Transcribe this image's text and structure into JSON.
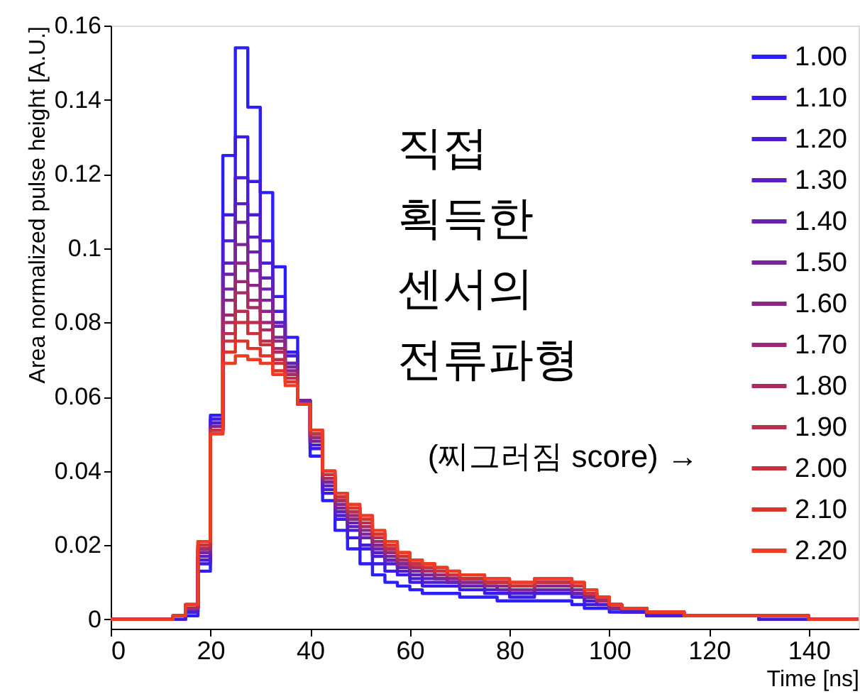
{
  "chart_data": {
    "type": "histogram",
    "xlabel": "Time [ns]",
    "ylabel": "Area normalized pulse height [A.U.]",
    "bins": [
      0,
      2.5,
      5,
      7.5,
      10,
      12.5,
      15,
      17.5,
      20,
      22.5,
      25,
      27.5,
      30,
      32.5,
      35,
      37.5,
      40,
      42.5,
      45,
      47.5,
      50,
      52.5,
      55,
      57.5,
      60,
      62.5,
      65,
      67.5,
      70,
      72.5,
      75,
      77.5,
      80,
      82.5,
      85,
      87.5,
      90,
      92.5,
      95,
      97.5,
      100,
      102.5,
      105,
      107.5,
      110,
      112.5,
      115,
      117.5,
      120,
      122.5,
      125,
      127.5,
      130,
      132.5,
      135,
      137.5,
      140,
      142.5,
      145,
      147.5,
      150
    ],
    "xlim": [
      0,
      150
    ],
    "xticks": [
      0,
      20,
      40,
      60,
      80,
      100,
      120,
      140
    ],
    "ylim": [
      -0.0025,
      0.16
    ],
    "yticks": [
      0,
      0.02,
      0.04,
      0.06,
      0.08,
      0.1,
      0.12,
      0.14,
      0.16
    ],
    "legend": "top right",
    "annotations": [
      "직접\n획득한\n센서의\n전류파형",
      "(찌그러짐 score) →"
    ],
    "series": [
      {
        "name": "1.00",
        "color": "#2b1eff",
        "values": [
          0,
          0,
          0,
          0,
          0,
          0,
          0.001,
          0.013,
          0.055,
          0.125,
          0.154,
          0.138,
          0.115,
          0.095,
          0.076,
          0.059,
          0.044,
          0.032,
          0.024,
          0.019,
          0.015,
          0.012,
          0.01,
          0.009,
          0.008,
          0.007,
          0.007,
          0.007,
          0.006,
          0.006,
          0.006,
          0.005,
          0.005,
          0.005,
          0.005,
          0.005,
          0.005,
          0.004,
          0.003,
          0.003,
          0.002,
          0.002,
          0.002,
          0.001,
          0.001,
          0.001,
          0.001,
          0.001,
          0.001,
          0.001,
          0.001,
          0.001,
          0,
          0,
          0,
          0,
          0,
          0,
          0,
          0
        ]
      },
      {
        "name": "1.10",
        "color": "#3a1be8",
        "values": [
          0,
          0,
          0,
          0,
          0,
          0,
          0.002,
          0.015,
          0.054,
          0.109,
          0.13,
          0.118,
          0.102,
          0.087,
          0.072,
          0.059,
          0.046,
          0.034,
          0.027,
          0.022,
          0.019,
          0.015,
          0.013,
          0.012,
          0.01,
          0.009,
          0.009,
          0.009,
          0.008,
          0.008,
          0.007,
          0.007,
          0.006,
          0.006,
          0.007,
          0.007,
          0.007,
          0.006,
          0.004,
          0.004,
          0.003,
          0.002,
          0.002,
          0.001,
          0.001,
          0.001,
          0.001,
          0.001,
          0.001,
          0.001,
          0.001,
          0.001,
          0,
          0,
          0,
          0,
          0,
          0,
          0,
          0
        ]
      },
      {
        "name": "1.20",
        "color": "#4a1cd4",
        "values": [
          0,
          0,
          0,
          0,
          0,
          0,
          0.002,
          0.016,
          0.053,
          0.102,
          0.119,
          0.109,
          0.096,
          0.083,
          0.071,
          0.059,
          0.047,
          0.035,
          0.028,
          0.024,
          0.02,
          0.017,
          0.015,
          0.013,
          0.011,
          0.01,
          0.01,
          0.01,
          0.009,
          0.009,
          0.008,
          0.008,
          0.007,
          0.007,
          0.008,
          0.008,
          0.008,
          0.007,
          0.005,
          0.004,
          0.003,
          0.002,
          0.002,
          0.001,
          0.001,
          0.001,
          0.001,
          0.001,
          0.001,
          0.001,
          0.001,
          0.001,
          0,
          0,
          0,
          0,
          0,
          0,
          0,
          0
        ]
      },
      {
        "name": "1.30",
        "color": "#5a1fc0",
        "values": [
          0,
          0,
          0,
          0,
          0,
          0.001,
          0.003,
          0.017,
          0.052,
          0.096,
          0.112,
          0.103,
          0.092,
          0.08,
          0.069,
          0.059,
          0.048,
          0.036,
          0.029,
          0.025,
          0.022,
          0.018,
          0.016,
          0.014,
          0.012,
          0.011,
          0.011,
          0.01,
          0.009,
          0.009,
          0.009,
          0.008,
          0.008,
          0.008,
          0.008,
          0.008,
          0.008,
          0.007,
          0.006,
          0.005,
          0.003,
          0.003,
          0.003,
          0.002,
          0.002,
          0.002,
          0.001,
          0.001,
          0.001,
          0.001,
          0.001,
          0.001,
          0.001,
          0.001,
          0.001,
          0.001,
          0,
          0,
          0,
          0
        ]
      },
      {
        "name": "1.40",
        "color": "#6a21ad",
        "values": [
          0,
          0,
          0,
          0,
          0,
          0.001,
          0.003,
          0.018,
          0.052,
          0.093,
          0.107,
          0.099,
          0.089,
          0.079,
          0.069,
          0.059,
          0.048,
          0.037,
          0.03,
          0.026,
          0.022,
          0.019,
          0.016,
          0.014,
          0.013,
          0.012,
          0.011,
          0.01,
          0.009,
          0.009,
          0.009,
          0.008,
          0.008,
          0.008,
          0.008,
          0.008,
          0.008,
          0.007,
          0.006,
          0.005,
          0.003,
          0.003,
          0.003,
          0.002,
          0.002,
          0.002,
          0.001,
          0.001,
          0.001,
          0.001,
          0.001,
          0.001,
          0.001,
          0.001,
          0.001,
          0.001,
          0,
          0,
          0,
          0
        ]
      },
      {
        "name": "1.50",
        "color": "#7a249a",
        "values": [
          0,
          0,
          0,
          0,
          0,
          0.001,
          0.003,
          0.018,
          0.052,
          0.089,
          0.101,
          0.094,
          0.086,
          0.076,
          0.068,
          0.059,
          0.048,
          0.037,
          0.03,
          0.027,
          0.023,
          0.02,
          0.017,
          0.015,
          0.013,
          0.012,
          0.011,
          0.011,
          0.01,
          0.01,
          0.009,
          0.009,
          0.008,
          0.008,
          0.009,
          0.009,
          0.009,
          0.008,
          0.006,
          0.005,
          0.003,
          0.003,
          0.003,
          0.002,
          0.002,
          0.002,
          0.001,
          0.001,
          0.001,
          0.001,
          0.001,
          0.001,
          0.001,
          0.001,
          0.001,
          0.001,
          0,
          0,
          0,
          0
        ]
      },
      {
        "name": "1.60",
        "color": "#8a2687",
        "values": [
          0,
          0,
          0,
          0,
          0,
          0.001,
          0.003,
          0.019,
          0.051,
          0.086,
          0.096,
          0.09,
          0.083,
          0.075,
          0.067,
          0.058,
          0.049,
          0.038,
          0.031,
          0.027,
          0.024,
          0.02,
          0.018,
          0.015,
          0.014,
          0.013,
          0.012,
          0.011,
          0.01,
          0.01,
          0.009,
          0.009,
          0.008,
          0.008,
          0.009,
          0.009,
          0.009,
          0.008,
          0.006,
          0.005,
          0.003,
          0.003,
          0.003,
          0.002,
          0.002,
          0.002,
          0.001,
          0.001,
          0.001,
          0.001,
          0.001,
          0.001,
          0.001,
          0.001,
          0.001,
          0.001,
          0,
          0,
          0,
          0
        ]
      },
      {
        "name": "1.70",
        "color": "#9a2974",
        "values": [
          0,
          0,
          0,
          0,
          0,
          0.001,
          0.003,
          0.019,
          0.051,
          0.082,
          0.091,
          0.086,
          0.08,
          0.073,
          0.066,
          0.058,
          0.049,
          0.038,
          0.032,
          0.028,
          0.025,
          0.021,
          0.018,
          0.016,
          0.014,
          0.013,
          0.012,
          0.012,
          0.011,
          0.011,
          0.01,
          0.01,
          0.009,
          0.009,
          0.01,
          0.01,
          0.01,
          0.009,
          0.007,
          0.005,
          0.004,
          0.003,
          0.003,
          0.002,
          0.002,
          0.002,
          0.001,
          0.001,
          0.001,
          0.001,
          0.001,
          0.001,
          0.001,
          0.001,
          0.001,
          0.001,
          0,
          0,
          0,
          0
        ]
      },
      {
        "name": "1.80",
        "color": "#aa2b61",
        "values": [
          0,
          0,
          0,
          0,
          0,
          0.001,
          0.003,
          0.019,
          0.051,
          0.08,
          0.088,
          0.084,
          0.078,
          0.072,
          0.066,
          0.058,
          0.05,
          0.038,
          0.032,
          0.029,
          0.025,
          0.022,
          0.019,
          0.016,
          0.014,
          0.013,
          0.013,
          0.012,
          0.011,
          0.011,
          0.01,
          0.01,
          0.009,
          0.009,
          0.01,
          0.01,
          0.01,
          0.009,
          0.007,
          0.005,
          0.004,
          0.003,
          0.003,
          0.002,
          0.002,
          0.002,
          0.001,
          0.001,
          0.001,
          0.001,
          0.001,
          0.001,
          0.001,
          0.001,
          0.001,
          0.001,
          0,
          0,
          0,
          0
        ]
      },
      {
        "name": "1.90",
        "color": "#ba2e4e",
        "values": [
          0,
          0,
          0,
          0,
          0,
          0.001,
          0.004,
          0.02,
          0.051,
          0.077,
          0.083,
          0.08,
          0.075,
          0.07,
          0.065,
          0.058,
          0.05,
          0.039,
          0.033,
          0.029,
          0.026,
          0.022,
          0.019,
          0.017,
          0.015,
          0.014,
          0.013,
          0.012,
          0.011,
          0.011,
          0.01,
          0.01,
          0.009,
          0.009,
          0.01,
          0.01,
          0.01,
          0.009,
          0.007,
          0.006,
          0.004,
          0.003,
          0.003,
          0.002,
          0.002,
          0.002,
          0.001,
          0.001,
          0.001,
          0.001,
          0.001,
          0.001,
          0.001,
          0.001,
          0.001,
          0.001,
          0,
          0,
          0,
          0
        ]
      },
      {
        "name": "2.00",
        "color": "#cb313b",
        "values": [
          0,
          0,
          0,
          0,
          0,
          0.001,
          0.004,
          0.02,
          0.051,
          0.075,
          0.08,
          0.077,
          0.074,
          0.069,
          0.064,
          0.058,
          0.05,
          0.039,
          0.033,
          0.03,
          0.027,
          0.023,
          0.02,
          0.017,
          0.015,
          0.014,
          0.013,
          0.012,
          0.011,
          0.011,
          0.01,
          0.01,
          0.009,
          0.009,
          0.01,
          0.01,
          0.01,
          0.009,
          0.007,
          0.006,
          0.004,
          0.003,
          0.003,
          0.002,
          0.002,
          0.002,
          0.001,
          0.001,
          0.001,
          0.001,
          0.001,
          0.001,
          0.001,
          0.001,
          0.001,
          0.001,
          0,
          0,
          0,
          0
        ]
      },
      {
        "name": "2.10",
        "color": "#dc3428",
        "values": [
          0,
          0,
          0,
          0,
          0,
          0.001,
          0.004,
          0.021,
          0.05,
          0.072,
          0.075,
          0.073,
          0.071,
          0.067,
          0.064,
          0.058,
          0.051,
          0.04,
          0.034,
          0.03,
          0.027,
          0.023,
          0.02,
          0.018,
          0.016,
          0.015,
          0.014,
          0.013,
          0.012,
          0.012,
          0.011,
          0.011,
          0.01,
          0.01,
          0.011,
          0.011,
          0.011,
          0.01,
          0.008,
          0.006,
          0.004,
          0.003,
          0.003,
          0.002,
          0.002,
          0.002,
          0.001,
          0.001,
          0.001,
          0.001,
          0.001,
          0.001,
          0.001,
          0.001,
          0.001,
          0.001,
          0,
          0,
          0,
          0
        ]
      },
      {
        "name": "2.20",
        "color": "#ee3b24",
        "values": [
          0,
          0,
          0,
          0,
          0,
          0.001,
          0.004,
          0.021,
          0.05,
          0.069,
          0.071,
          0.07,
          0.069,
          0.066,
          0.063,
          0.058,
          0.051,
          0.04,
          0.034,
          0.031,
          0.028,
          0.024,
          0.021,
          0.018,
          0.016,
          0.015,
          0.014,
          0.013,
          0.012,
          0.012,
          0.011,
          0.011,
          0.01,
          0.01,
          0.011,
          0.011,
          0.011,
          0.01,
          0.008,
          0.006,
          0.004,
          0.003,
          0.003,
          0.002,
          0.002,
          0.002,
          0.001,
          0.001,
          0.001,
          0.001,
          0.001,
          0.001,
          0.001,
          0.001,
          0.001,
          0.001,
          0,
          0,
          0,
          0
        ]
      }
    ]
  }
}
